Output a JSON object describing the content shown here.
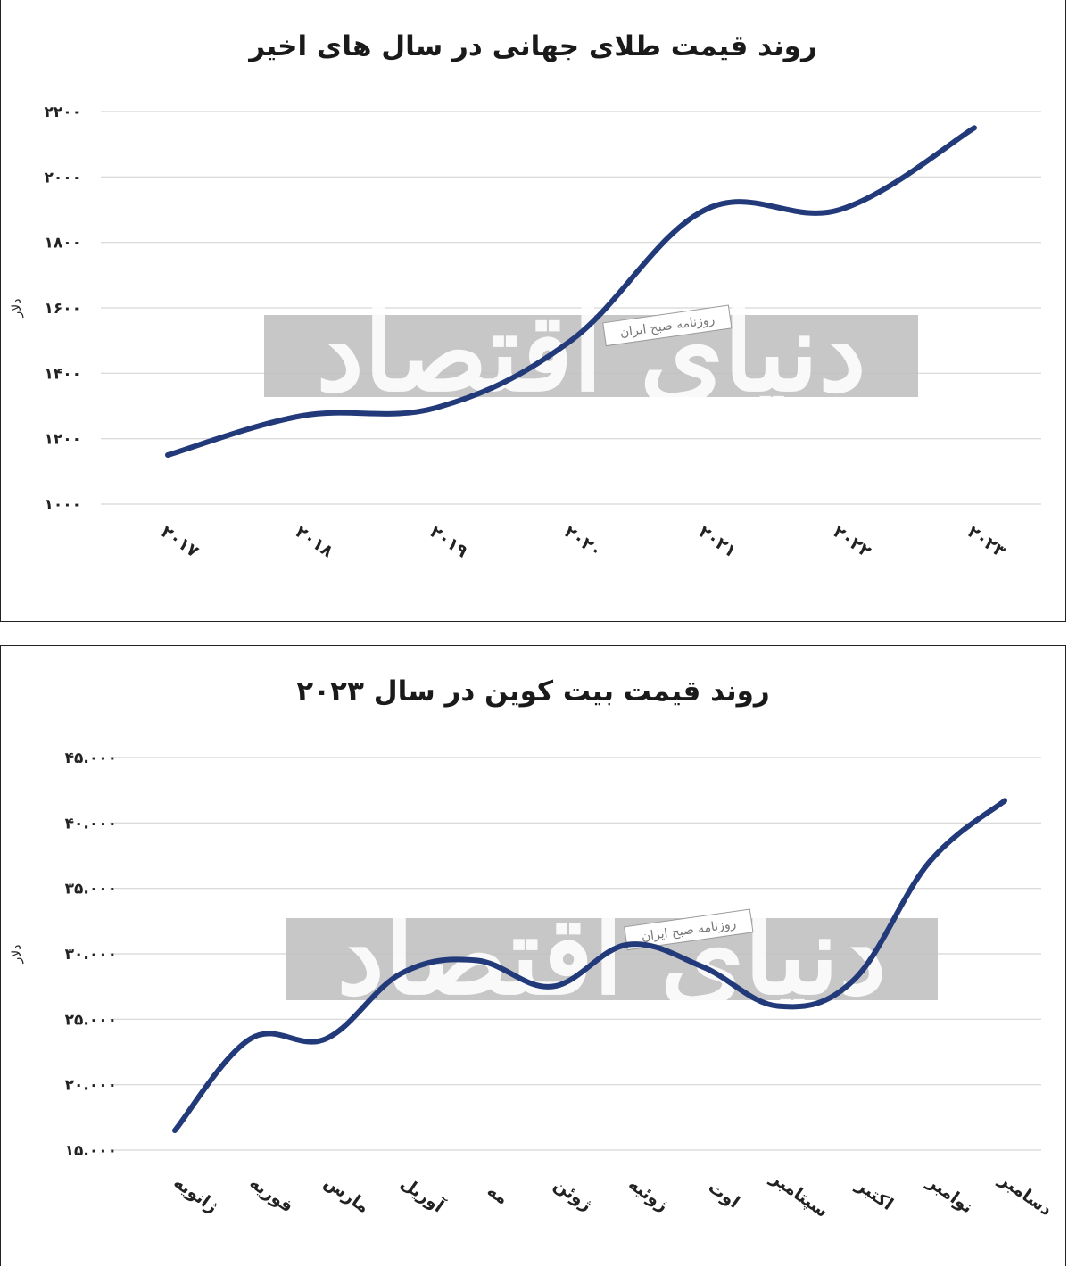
{
  "watermark": {
    "brand": "دنیای اقتصاد",
    "tag": "روزنامه صبح ایران"
  },
  "chart_data": [
    {
      "type": "line",
      "title": "روند قیمت طلای جهانی در سال های اخیر",
      "ylabel": "دلار",
      "xlabel": "",
      "x": [
        "۲۰۱۷",
        "۲۰۱۸",
        "۲۰۱۹",
        "۲۰۲۰",
        "۲۰۲۱",
        "۲۰۲۲",
        "۲۰۲۳"
      ],
      "yticks": [
        "۱۰۰۰",
        "۱۲۰۰",
        "۱۴۰۰",
        "۱۶۰۰",
        "۱۸۰۰",
        "۲۰۰۰",
        "۲۲۰۰"
      ],
      "ylim": [
        1000,
        2200
      ],
      "series": [
        {
          "values": [
            1150,
            1270,
            1295,
            1500,
            1900,
            1900,
            2150
          ],
          "color": "#223a7a"
        }
      ],
      "grid": true,
      "legend": "none"
    },
    {
      "type": "line",
      "title": "روند قیمت بیت کوین در سال ۲۰۲۳",
      "ylabel": "دلار",
      "xlabel": "",
      "x": [
        "ژانویه",
        "فوریه",
        "مارس",
        "آوریل",
        "مه",
        "ژوئن",
        "ژوئیه",
        "اوت",
        "سپتامبر",
        "اکتبر",
        "نوامبر",
        "دسامبر"
      ],
      "yticks": [
        "۱۵.۰۰۰",
        "۲۰.۰۰۰",
        "۲۵.۰۰۰",
        "۳۰.۰۰۰",
        "۳۵.۰۰۰",
        "۴۰.۰۰۰",
        "۴۵.۰۰۰"
      ],
      "ylim": [
        15000,
        45000
      ],
      "series": [
        {
          "values": [
            16500,
            23500,
            23500,
            28500,
            29500,
            27500,
            30700,
            29000,
            26000,
            28000,
            37000,
            41700
          ],
          "color": "#223a7a"
        }
      ],
      "grid": true,
      "legend": "none"
    }
  ]
}
